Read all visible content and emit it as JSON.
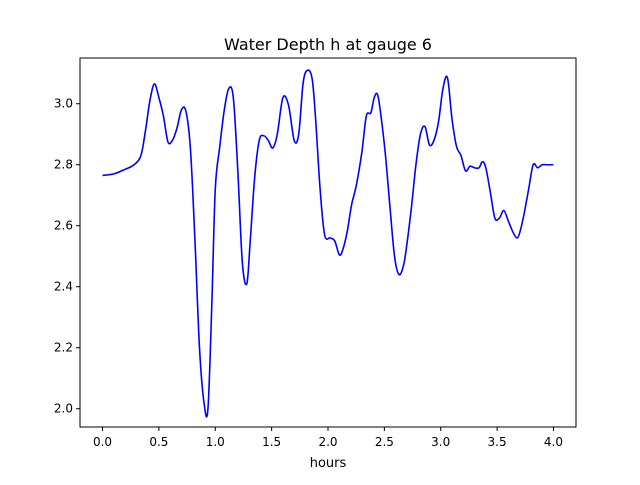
{
  "chart_data": {
    "type": "line",
    "title": "Water Depth h at gauge 6",
    "xlabel": "hours",
    "ylabel": "",
    "xlim": [
      -0.2,
      4.2
    ],
    "ylim": [
      1.94,
      3.15
    ],
    "grid": false,
    "legend": "none",
    "xticks": [
      0.0,
      0.5,
      1.0,
      1.5,
      2.0,
      2.5,
      3.0,
      3.5,
      4.0
    ],
    "xtick_labels": [
      "0.0",
      "0.5",
      "1.0",
      "1.5",
      "2.0",
      "2.5",
      "3.0",
      "3.5",
      "4.0"
    ],
    "yticks": [
      2.0,
      2.2,
      2.4,
      2.6,
      2.8,
      3.0
    ],
    "ytick_labels": [
      "2.0",
      "2.2",
      "2.4",
      "2.6",
      "2.8",
      "3.0"
    ],
    "series": [
      {
        "color": "#0000ff",
        "x": [
          0.0,
          0.1,
          0.2,
          0.28,
          0.34,
          0.38,
          0.42,
          0.46,
          0.5,
          0.54,
          0.58,
          0.62,
          0.66,
          0.7,
          0.74,
          0.78,
          0.82,
          0.86,
          0.9,
          0.935,
          0.97,
          1.0,
          1.04,
          1.08,
          1.12,
          1.16,
          1.2,
          1.24,
          1.28,
          1.31,
          1.35,
          1.39,
          1.43,
          1.47,
          1.51,
          1.55,
          1.6,
          1.65,
          1.7,
          1.74,
          1.78,
          1.82,
          1.86,
          1.89,
          1.93,
          1.97,
          2.02,
          2.06,
          2.1,
          2.13,
          2.17,
          2.21,
          2.25,
          2.3,
          2.34,
          2.38,
          2.41,
          2.44,
          2.47,
          2.51,
          2.55,
          2.59,
          2.63,
          2.67,
          2.7,
          2.74,
          2.78,
          2.82,
          2.86,
          2.9,
          2.94,
          2.98,
          3.02,
          3.06,
          3.1,
          3.14,
          3.18,
          3.22,
          3.26,
          3.3,
          3.34,
          3.37,
          3.4,
          3.44,
          3.48,
          3.52,
          3.56,
          3.6,
          3.64,
          3.68,
          3.71,
          3.74,
          3.78,
          3.82,
          3.86,
          3.9,
          3.94,
          3.97,
          4.0
        ],
        "y": [
          2.765,
          2.77,
          2.785,
          2.8,
          2.83,
          2.91,
          3.01,
          3.065,
          3.02,
          2.96,
          2.875,
          2.88,
          2.92,
          2.98,
          2.975,
          2.85,
          2.55,
          2.2,
          2.02,
          2.0,
          2.35,
          2.72,
          2.86,
          2.98,
          3.05,
          3.02,
          2.78,
          2.48,
          2.41,
          2.55,
          2.76,
          2.88,
          2.895,
          2.88,
          2.855,
          2.9,
          3.02,
          2.995,
          2.88,
          2.9,
          3.07,
          3.11,
          3.08,
          2.95,
          2.72,
          2.57,
          2.56,
          2.55,
          2.505,
          2.52,
          2.58,
          2.67,
          2.73,
          2.84,
          2.96,
          2.97,
          3.02,
          3.03,
          2.96,
          2.83,
          2.66,
          2.5,
          2.44,
          2.47,
          2.54,
          2.66,
          2.8,
          2.9,
          2.925,
          2.865,
          2.88,
          2.94,
          3.05,
          3.085,
          2.95,
          2.86,
          2.83,
          2.78,
          2.795,
          2.79,
          2.79,
          2.81,
          2.79,
          2.71,
          2.625,
          2.625,
          2.65,
          2.615,
          2.58,
          2.56,
          2.59,
          2.64,
          2.72,
          2.8,
          2.79,
          2.8,
          2.8,
          2.8,
          2.8
        ]
      }
    ]
  }
}
